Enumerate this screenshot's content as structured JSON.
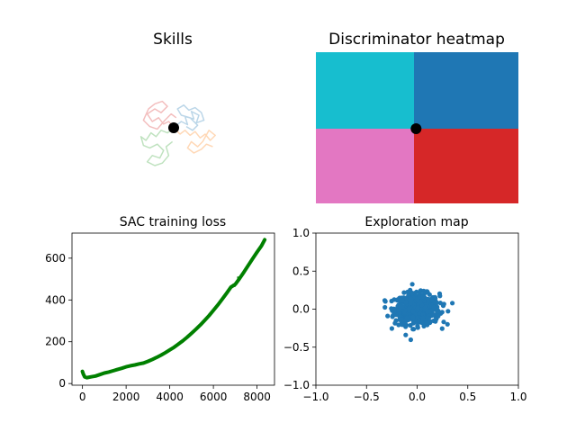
{
  "chart_data": [
    {
      "type": "line",
      "title": "Skills",
      "axes_visible": false,
      "series": [
        {
          "color": "#1f77b4",
          "opacity": 0.3,
          "points": [
            [
              0.02,
              0.02
            ],
            [
              0.12,
              0.1
            ],
            [
              0.22,
              0.05
            ],
            [
              0.18,
              0.18
            ],
            [
              0.32,
              0.14
            ],
            [
              0.28,
              0.26
            ],
            [
              0.4,
              0.2
            ],
            [
              0.36,
              0.08
            ],
            [
              0.48,
              0.12
            ],
            [
              0.44,
              0.24
            ],
            [
              0.34,
              0.32
            ],
            [
              0.24,
              0.28
            ],
            [
              0.16,
              0.36
            ],
            [
              0.06,
              0.3
            ],
            [
              0.12,
              0.2
            ],
            [
              0.26,
              0.16
            ],
            [
              0.38,
              0.04
            ],
            [
              0.3,
              -0.04
            ],
            [
              0.2,
              0.02
            ]
          ]
        },
        {
          "color": "#ff7f0e",
          "opacity": 0.3,
          "points": [
            [
              0.02,
              -0.02
            ],
            [
              0.1,
              -0.1
            ],
            [
              0.18,
              -0.04
            ],
            [
              0.26,
              -0.12
            ],
            [
              0.34,
              -0.06
            ],
            [
              0.42,
              -0.16
            ],
            [
              0.5,
              -0.1
            ],
            [
              0.58,
              -0.2
            ],
            [
              0.66,
              -0.12
            ],
            [
              0.56,
              -0.04
            ],
            [
              0.46,
              -0.22
            ],
            [
              0.38,
              -0.3
            ],
            [
              0.28,
              -0.22
            ],
            [
              0.22,
              -0.32
            ],
            [
              0.32,
              -0.4
            ],
            [
              0.44,
              -0.34
            ],
            [
              0.52,
              -0.26
            ],
            [
              0.62,
              -0.3
            ]
          ]
        },
        {
          "color": "#2ca02c",
          "opacity": 0.3,
          "points": [
            [
              -0.02,
              -0.02
            ],
            [
              -0.1,
              -0.08
            ],
            [
              -0.2,
              -0.04
            ],
            [
              -0.28,
              -0.14
            ],
            [
              -0.36,
              -0.08
            ],
            [
              -0.44,
              -0.2
            ],
            [
              -0.52,
              -0.14
            ],
            [
              -0.48,
              -0.28
            ],
            [
              -0.38,
              -0.32
            ],
            [
              -0.26,
              -0.26
            ],
            [
              -0.16,
              -0.36
            ],
            [
              -0.22,
              -0.48
            ],
            [
              -0.34,
              -0.44
            ],
            [
              -0.42,
              -0.54
            ],
            [
              -0.3,
              -0.6
            ],
            [
              -0.18,
              -0.56
            ],
            [
              -0.08,
              -0.44
            ],
            [
              -0.12,
              -0.3
            ],
            [
              -0.02,
              -0.22
            ]
          ]
        },
        {
          "color": "#d62728",
          "opacity": 0.3,
          "points": [
            [
              0.0,
              0.02
            ],
            [
              -0.08,
              0.1
            ],
            [
              -0.16,
              0.06
            ],
            [
              -0.24,
              0.16
            ],
            [
              -0.34,
              0.1
            ],
            [
              -0.42,
              0.22
            ],
            [
              -0.3,
              0.3
            ],
            [
              -0.2,
              0.24
            ],
            [
              -0.1,
              0.34
            ],
            [
              -0.18,
              0.42
            ],
            [
              -0.3,
              0.38
            ],
            [
              -0.4,
              0.3
            ],
            [
              -0.48,
              0.12
            ],
            [
              -0.38,
              0.02
            ],
            [
              -0.26,
              -0.02
            ],
            [
              -0.14,
              0.12
            ],
            [
              -0.04,
              0.22
            ],
            [
              0.04,
              0.16
            ]
          ]
        }
      ],
      "marker": {
        "x": 0,
        "y": 0,
        "color": "#000000"
      }
    },
    {
      "type": "heatmap",
      "title": "Discriminator heatmap",
      "axes_visible": false,
      "xlim": [
        -1,
        1
      ],
      "ylim": [
        -1,
        1
      ],
      "quadrants": [
        {
          "name": "top-left",
          "x": [
            -1,
            0
          ],
          "y": [
            0,
            1
          ],
          "color": "#17becf"
        },
        {
          "name": "top-right",
          "x": [
            0,
            1
          ],
          "y": [
            0,
            1
          ],
          "color": "#1f77b4"
        },
        {
          "name": "bottom-left",
          "x": [
            -1,
            0
          ],
          "y": [
            -1,
            0
          ],
          "color": "#e377c2"
        },
        {
          "name": "bottom-right",
          "x": [
            0,
            1
          ],
          "y": [
            -1,
            0
          ],
          "color": "#d62728"
        }
      ],
      "marker": {
        "x": 0.02,
        "y": 0.0,
        "color": "#000000"
      }
    },
    {
      "type": "line",
      "title": "SAC training loss",
      "xlim": [
        -480,
        8800
      ],
      "ylim": [
        -8,
        720
      ],
      "xticks": [
        0,
        2000,
        4000,
        6000,
        8000
      ],
      "yticks": [
        0,
        200,
        400,
        600
      ],
      "series": [
        {
          "color": "#008000",
          "points": [
            [
              0,
              58
            ],
            [
              40,
              45
            ],
            [
              100,
              32
            ],
            [
              200,
              28
            ],
            [
              400,
              32
            ],
            [
              600,
              36
            ],
            [
              800,
              43
            ],
            [
              1000,
              50
            ],
            [
              1200,
              55
            ],
            [
              1400,
              61
            ],
            [
              1600,
              67
            ],
            [
              1800,
              73
            ],
            [
              2000,
              80
            ],
            [
              2200,
              85
            ],
            [
              2400,
              89
            ],
            [
              2600,
              94
            ],
            [
              2800,
              98
            ],
            [
              3000,
              106
            ],
            [
              3200,
              115
            ],
            [
              3400,
              125
            ],
            [
              3600,
              136
            ],
            [
              3800,
              148
            ],
            [
              4000,
              161
            ],
            [
              4200,
              174
            ],
            [
              4400,
              189
            ],
            [
              4600,
              205
            ],
            [
              4800,
              222
            ],
            [
              5000,
              241
            ],
            [
              5200,
              260
            ],
            [
              5400,
              280
            ],
            [
              5600,
              302
            ],
            [
              5800,
              325
            ],
            [
              6000,
              350
            ],
            [
              6200,
              376
            ],
            [
              6400,
              403
            ],
            [
              6600,
              432
            ],
            [
              6800,
              461
            ],
            [
              7000,
              475
            ],
            [
              7200,
              503
            ],
            [
              7400,
              534
            ],
            [
              7600,
              566
            ],
            [
              7800,
              598
            ],
            [
              8000,
              629
            ],
            [
              8200,
              659
            ],
            [
              8350,
              688
            ]
          ]
        }
      ]
    },
    {
      "type": "scatter",
      "title": "Exploration map",
      "xlim": [
        -1,
        1
      ],
      "ylim": [
        -1,
        1
      ],
      "xticks": [
        -1.0,
        -0.5,
        0.0,
        0.5,
        1.0
      ],
      "yticks": [
        -1.0,
        -0.5,
        0.0,
        0.5,
        1.0
      ],
      "tick_labels": [
        "−1.0",
        "−0.5",
        "0.0",
        "0.5",
        "1.0"
      ],
      "color": "#1f77b4",
      "n_points": 600,
      "spread": {
        "x_std": 0.11,
        "y_std": 0.1,
        "x_range": [
          -0.32,
          0.38
        ],
        "y_range": [
          -0.47,
          0.37
        ]
      }
    }
  ]
}
